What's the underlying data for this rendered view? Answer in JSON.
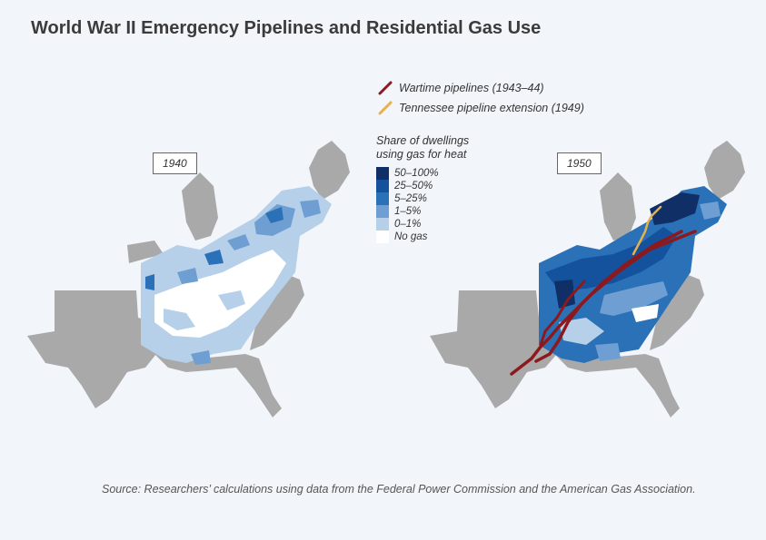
{
  "title": "World War II Emergency Pipelines and Residential Gas Use",
  "panels": [
    {
      "year_label": "1940"
    },
    {
      "year_label": "1950"
    }
  ],
  "pipelines_legend": [
    {
      "label": "Wartime pipelines (1943–44)",
      "color": "#8b1a1f"
    },
    {
      "label": "Tennessee pipeline extension (1949)",
      "color": "#e8b04a"
    }
  ],
  "share_legend": {
    "title": "Share of dwellings using gas for heat",
    "items": [
      {
        "label": "50–100%",
        "color": "#0f2f66"
      },
      {
        "label": "25–50%",
        "color": "#14529e"
      },
      {
        "label": "5–25%",
        "color": "#2a71b8"
      },
      {
        "label": "1–5%",
        "color": "#6f9fd2"
      },
      {
        "label": "0–1%",
        "color": "#b7d0ea"
      },
      {
        "label": "No gas",
        "color": "#ffffff"
      }
    ]
  },
  "colors": {
    "land_outside": "#a9a9a9",
    "background": "#f2f6fb"
  },
  "source": "Source: Researchers’ calculations using data from the Federal Power Commission and the American Gas Association."
}
